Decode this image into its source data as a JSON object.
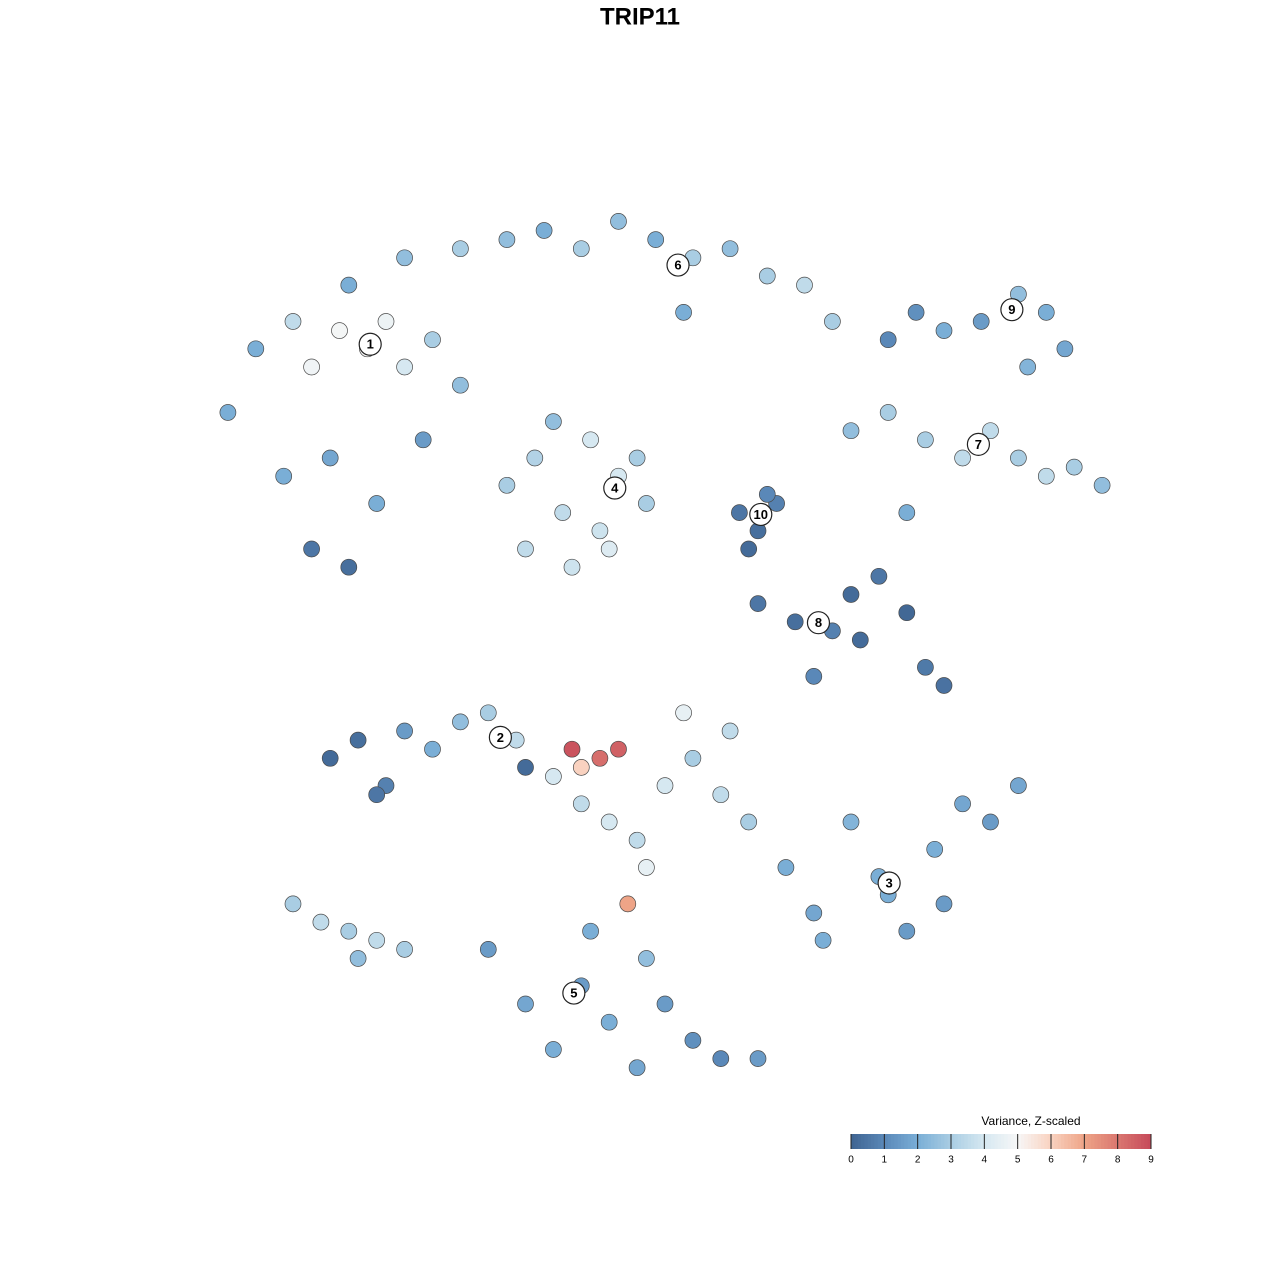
{
  "chart_data": {
    "type": "scatter",
    "title": "TRIP11",
    "xlim": [
      0,
      100
    ],
    "ylim": [
      0,
      100
    ],
    "x": [
      3,
      6,
      10,
      12,
      15,
      18,
      20,
      22,
      25,
      28,
      9,
      14,
      19,
      24,
      12,
      16,
      16,
      22,
      28,
      33,
      37,
      41,
      45,
      49,
      53,
      57,
      61,
      65,
      68,
      52,
      74,
      77,
      80,
      84,
      88,
      91,
      93,
      89,
      70,
      74,
      78,
      82,
      85,
      88,
      91,
      94,
      97,
      76,
      33,
      36,
      39,
      42,
      45,
      48,
      35,
      40,
      44,
      47,
      38,
      43,
      58,
      60,
      62,
      59,
      61,
      60,
      64,
      68,
      70,
      73,
      76,
      78,
      80,
      71,
      66,
      14,
      17,
      20,
      22,
      25,
      28,
      31,
      34,
      19,
      35,
      38,
      41,
      44,
      47,
      50,
      53,
      56,
      59,
      40,
      45,
      43,
      48,
      52,
      57,
      46,
      41,
      63,
      66,
      70,
      73,
      76,
      79,
      82,
      85,
      88,
      67,
      74,
      80,
      31,
      35,
      38,
      41,
      44,
      47,
      50,
      53,
      56,
      60,
      42,
      48,
      10,
      13,
      16,
      19,
      22,
      17
    ],
    "y": [
      75,
      82,
      85,
      80,
      84,
      82,
      85,
      80,
      83,
      78,
      68,
      70,
      65,
      72,
      60,
      58,
      89,
      92,
      93,
      94,
      95,
      93,
      96,
      94,
      92,
      93,
      90,
      89,
      85,
      86,
      83,
      86,
      84,
      85,
      88,
      86,
      82,
      80,
      73,
      75,
      72,
      70,
      73,
      70,
      68,
      69,
      67,
      64,
      67,
      70,
      64,
      72,
      68,
      65,
      60,
      58,
      60,
      70,
      74,
      62,
      64,
      62,
      65,
      60,
      66,
      54,
      52,
      51,
      55,
      57,
      53,
      47,
      45,
      50,
      46,
      37,
      39,
      34,
      40,
      38,
      41,
      42,
      39,
      33,
      36,
      35,
      32,
      30,
      28,
      34,
      37,
      33,
      30,
      38,
      38,
      37,
      25,
      42,
      40,
      21,
      36,
      25,
      20,
      30,
      24,
      18,
      27,
      32,
      30,
      34,
      17,
      22,
      21,
      16,
      10,
      5,
      12,
      8,
      3,
      10,
      6,
      4,
      4,
      18,
      15,
      21,
      19,
      18,
      17,
      16,
      15
    ],
    "values": [
      2,
      2,
      3.5,
      4.8,
      4.9,
      5,
      4.7,
      4,
      3,
      2.5,
      2,
      1.8,
      2,
      1.5,
      0.5,
      0.3,
      2,
      2.5,
      3,
      2.5,
      2,
      3,
      2.5,
      2,
      3,
      2.5,
      3,
      3.5,
      3,
      2,
      1,
      1.2,
      2,
      1.5,
      2.5,
      2,
      1.8,
      2.2,
      2.5,
      3,
      3,
      3.5,
      3.5,
      3,
      3.5,
      3,
      2.5,
      2,
      3,
      3.2,
      3.5,
      4,
      4,
      3,
      3.5,
      3.8,
      4.2,
      3,
      2.5,
      3.8,
      0.5,
      0.3,
      0.8,
      0.2,
      1,
      0.5,
      0.3,
      0.8,
      0.2,
      0.5,
      0.1,
      0.6,
      0.4,
      0.2,
      1,
      0.2,
      0.3,
      0.8,
      1.5,
      2,
      2.5,
      3,
      3.5,
      0.5,
      0.2,
      4,
      3.5,
      4,
      3.5,
      4,
      3,
      3.5,
      3,
      8.8,
      8.5,
      8.2,
      4.5,
      4.5,
      3.5,
      7,
      6,
      2,
      1.8,
      2.2,
      2,
      1.5,
      2,
      1.8,
      1.5,
      1.8,
      2,
      2,
      1.5,
      1.5,
      1.8,
      2,
      1.5,
      2,
      1.8,
      1.5,
      1.2,
      1,
      1.5,
      2,
      2.5,
      3,
      3.5,
      3,
      3.5,
      3,
      2.5
    ],
    "clusters": [
      {
        "label": "1",
        "x": 18.3,
        "y": 82.5
      },
      {
        "label": "2",
        "x": 32.3,
        "y": 39.3
      },
      {
        "label": "3",
        "x": 74.1,
        "y": 23.3
      },
      {
        "label": "4",
        "x": 44.6,
        "y": 66.7
      },
      {
        "label": "5",
        "x": 40.2,
        "y": 11.2
      },
      {
        "label": "6",
        "x": 51.4,
        "y": 91.2
      },
      {
        "label": "7",
        "x": 83.7,
        "y": 71.5
      },
      {
        "label": "8",
        "x": 66.5,
        "y": 51.9
      },
      {
        "label": "9",
        "x": 87.3,
        "y": 86.3
      },
      {
        "label": "10",
        "x": 60.3,
        "y": 63.8
      }
    ],
    "colorbar": {
      "title": "Variance, Z-scaled",
      "lim": [
        0,
        9
      ],
      "ticks": [
        0,
        1,
        2,
        3,
        4,
        5,
        6,
        7,
        8,
        9
      ],
      "colors": [
        "#3f6491",
        "#5a88b8",
        "#7aaed6",
        "#a9cde3",
        "#d6e8f1",
        "#f7f7f7",
        "#f9d2c0",
        "#eea487",
        "#da7770",
        "#c64a5a"
      ]
    }
  }
}
